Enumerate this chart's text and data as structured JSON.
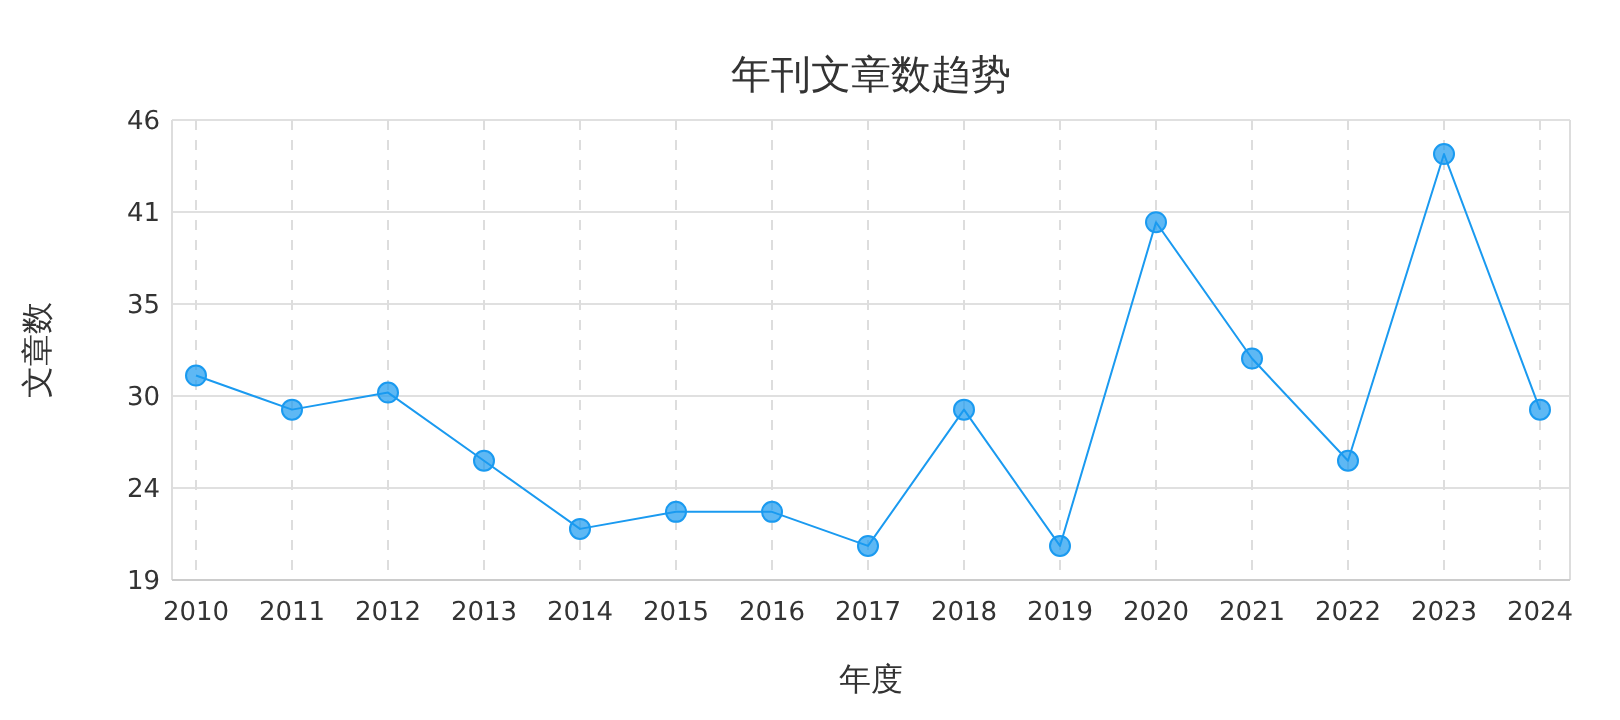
{
  "chart_data": {
    "type": "line",
    "title": "年刊文章数趋势",
    "xlabel": "年度",
    "ylabel": "文章数",
    "categories": [
      "2010",
      "2011",
      "2012",
      "2013",
      "2014",
      "2015",
      "2016",
      "2017",
      "2018",
      "2019",
      "2020",
      "2021",
      "2022",
      "2023",
      "2024"
    ],
    "series": [
      {
        "color": "#1a9af0",
        "values": [
          31,
          29,
          30,
          26,
          22,
          23,
          23,
          21,
          29,
          21,
          40,
          32,
          26,
          44,
          29
        ]
      }
    ],
    "ylim": [
      19,
      46
    ],
    "yticks": [
      19,
      {
        "value": 24.4,
        "label": "24"
      },
      {
        "value": 29.8,
        "label": "30"
      },
      {
        "value": 35.2,
        "label": "35"
      },
      {
        "value": 40.6,
        "label": "41"
      },
      46
    ],
    "grid": true,
    "marker": "circle",
    "line_style": "solid"
  }
}
